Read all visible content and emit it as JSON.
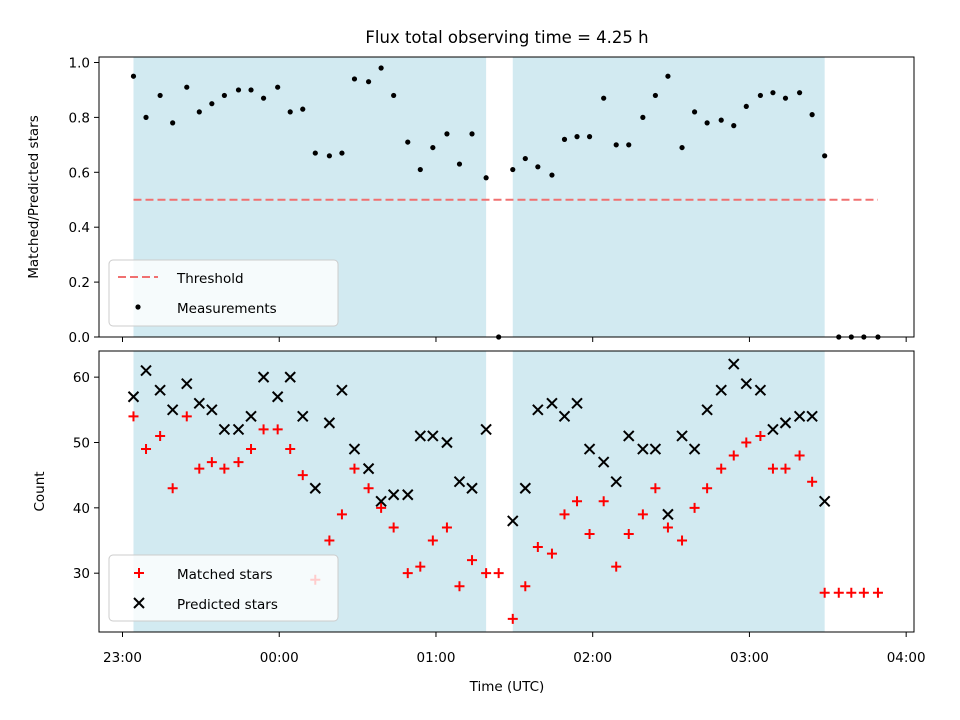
{
  "chart_data": {
    "type": "scatter",
    "title": "Flux total observing time = 4.25 h",
    "xlabel": "Time (UTC)",
    "x_unit": "hours (UTC, 23 = 23:00, 24 = 00:00 next day)",
    "xlim": [
      22.85,
      28.05
    ],
    "xticks": [
      23,
      24,
      25,
      26,
      27,
      28
    ],
    "xtick_labels": [
      "23:00",
      "00:00",
      "01:00",
      "02:00",
      "03:00",
      "04:00"
    ],
    "observing_windows": [
      [
        23.07,
        25.32
      ],
      [
        25.49,
        27.48
      ]
    ],
    "window_color": "#add8e6",
    "panels": [
      {
        "name": "top",
        "ylabel": "Matched/Predicted stars",
        "ylim": [
          0,
          1.02
        ],
        "yticks": [
          0.0,
          0.2,
          0.4,
          0.6,
          0.8,
          1.0
        ],
        "ytick_labels": [
          "0.0",
          "0.2",
          "0.4",
          "0.6",
          "0.8",
          "1.0"
        ],
        "threshold": {
          "label": "Threshold",
          "y": 0.5,
          "x_range": [
            23.07,
            27.82
          ],
          "color": "#f07070"
        },
        "series": [
          {
            "name": "Measurements",
            "marker": "dot",
            "color": "#000000",
            "x": [
              23.07,
              23.15,
              23.24,
              23.32,
              23.41,
              23.49,
              23.57,
              23.65,
              23.74,
              23.82,
              23.9,
              23.99,
              24.07,
              24.15,
              24.23,
              24.32,
              24.4,
              24.48,
              24.57,
              24.65,
              24.73,
              24.82,
              24.9,
              24.98,
              25.07,
              25.15,
              25.23,
              25.32,
              25.4,
              25.49,
              25.57,
              25.65,
              25.74,
              25.82,
              25.9,
              25.98,
              26.07,
              26.15,
              26.23,
              26.32,
              26.4,
              26.48,
              26.57,
              26.65,
              26.73,
              26.82,
              26.9,
              26.98,
              27.07,
              27.15,
              27.23,
              27.32,
              27.4,
              27.48,
              27.57,
              27.65,
              27.73,
              27.82
            ],
            "y": [
              0.95,
              0.8,
              0.88,
              0.78,
              0.91,
              0.82,
              0.85,
              0.88,
              0.9,
              0.9,
              0.87,
              0.91,
              0.82,
              0.83,
              0.67,
              0.66,
              0.67,
              0.94,
              0.93,
              0.98,
              0.88,
              0.71,
              0.61,
              0.69,
              0.74,
              0.63,
              0.74,
              0.58,
              0.0,
              0.61,
              0.65,
              0.62,
              0.59,
              0.72,
              0.73,
              0.73,
              0.87,
              0.7,
              0.7,
              0.8,
              0.88,
              0.95,
              0.69,
              0.82,
              0.78,
              0.79,
              0.77,
              0.84,
              0.88,
              0.89,
              0.87,
              0.89,
              0.81,
              0.66,
              0.0,
              0.0,
              0.0,
              0.0
            ]
          }
        ]
      },
      {
        "name": "bottom",
        "ylabel": "Count",
        "ylim": [
          21,
          64
        ],
        "yticks": [
          30,
          40,
          50,
          60
        ],
        "ytick_labels": [
          "30",
          "40",
          "50",
          "60"
        ],
        "series": [
          {
            "name": "Matched stars",
            "marker": "plus",
            "color": "#ff0000",
            "x": [
              23.07,
              23.15,
              23.24,
              23.32,
              23.41,
              23.49,
              23.57,
              23.65,
              23.74,
              23.82,
              23.9,
              23.99,
              24.07,
              24.15,
              24.23,
              24.32,
              24.4,
              24.48,
              24.57,
              24.65,
              24.73,
              24.82,
              24.9,
              24.98,
              25.07,
              25.15,
              25.23,
              25.32,
              25.4,
              25.49,
              25.57,
              25.65,
              25.74,
              25.82,
              25.9,
              25.98,
              26.07,
              26.15,
              26.23,
              26.32,
              26.4,
              26.48,
              26.57,
              26.65,
              26.73,
              26.82,
              26.9,
              26.98,
              27.07,
              27.15,
              27.23,
              27.32,
              27.4,
              27.48,
              27.57,
              27.65,
              27.73,
              27.82
            ],
            "y": [
              54,
              49,
              51,
              43,
              54,
              46,
              47,
              46,
              47,
              49,
              52,
              52,
              49,
              45,
              29,
              35,
              39,
              46,
              43,
              40,
              37,
              30,
              31,
              35,
              37,
              28,
              32,
              30,
              30,
              23,
              28,
              34,
              33,
              39,
              41,
              36,
              41,
              31,
              36,
              39,
              43,
              37,
              35,
              40,
              43,
              46,
              48,
              50,
              51,
              46,
              46,
              48,
              44,
              27,
              27,
              27,
              27,
              27
            ]
          },
          {
            "name": "Predicted stars",
            "marker": "x",
            "color": "#000000",
            "x": [
              23.07,
              23.15,
              23.24,
              23.32,
              23.41,
              23.49,
              23.57,
              23.65,
              23.74,
              23.82,
              23.9,
              23.99,
              24.07,
              24.15,
              24.23,
              24.32,
              24.4,
              24.48,
              24.57,
              24.65,
              24.73,
              24.82,
              24.9,
              24.98,
              25.07,
              25.15,
              25.23,
              25.32,
              25.49,
              25.57,
              25.65,
              25.74,
              25.82,
              25.9,
              25.98,
              26.07,
              26.15,
              26.23,
              26.32,
              26.4,
              26.48,
              26.57,
              26.65,
              26.73,
              26.82,
              26.9,
              26.98,
              27.07,
              27.15,
              27.23,
              27.32,
              27.4,
              27.48
            ],
            "y": [
              57,
              61,
              58,
              55,
              59,
              56,
              55,
              52,
              52,
              54,
              60,
              57,
              60,
              54,
              43,
              53,
              58,
              49,
              46,
              41,
              42,
              42,
              51,
              51,
              50,
              44,
              43,
              52,
              38,
              43,
              55,
              56,
              54,
              56,
              49,
              47,
              44,
              51,
              49,
              49,
              39,
              51,
              49,
              55,
              58,
              62,
              59,
              58,
              52,
              53,
              54,
              54,
              41
            ]
          }
        ]
      }
    ],
    "legends": [
      {
        "panel": "top",
        "location": "lower-left",
        "entries": [
          "Threshold",
          "Measurements"
        ]
      },
      {
        "panel": "bottom",
        "location": "lower-left",
        "entries": [
          "Matched stars",
          "Predicted stars"
        ]
      }
    ]
  }
}
